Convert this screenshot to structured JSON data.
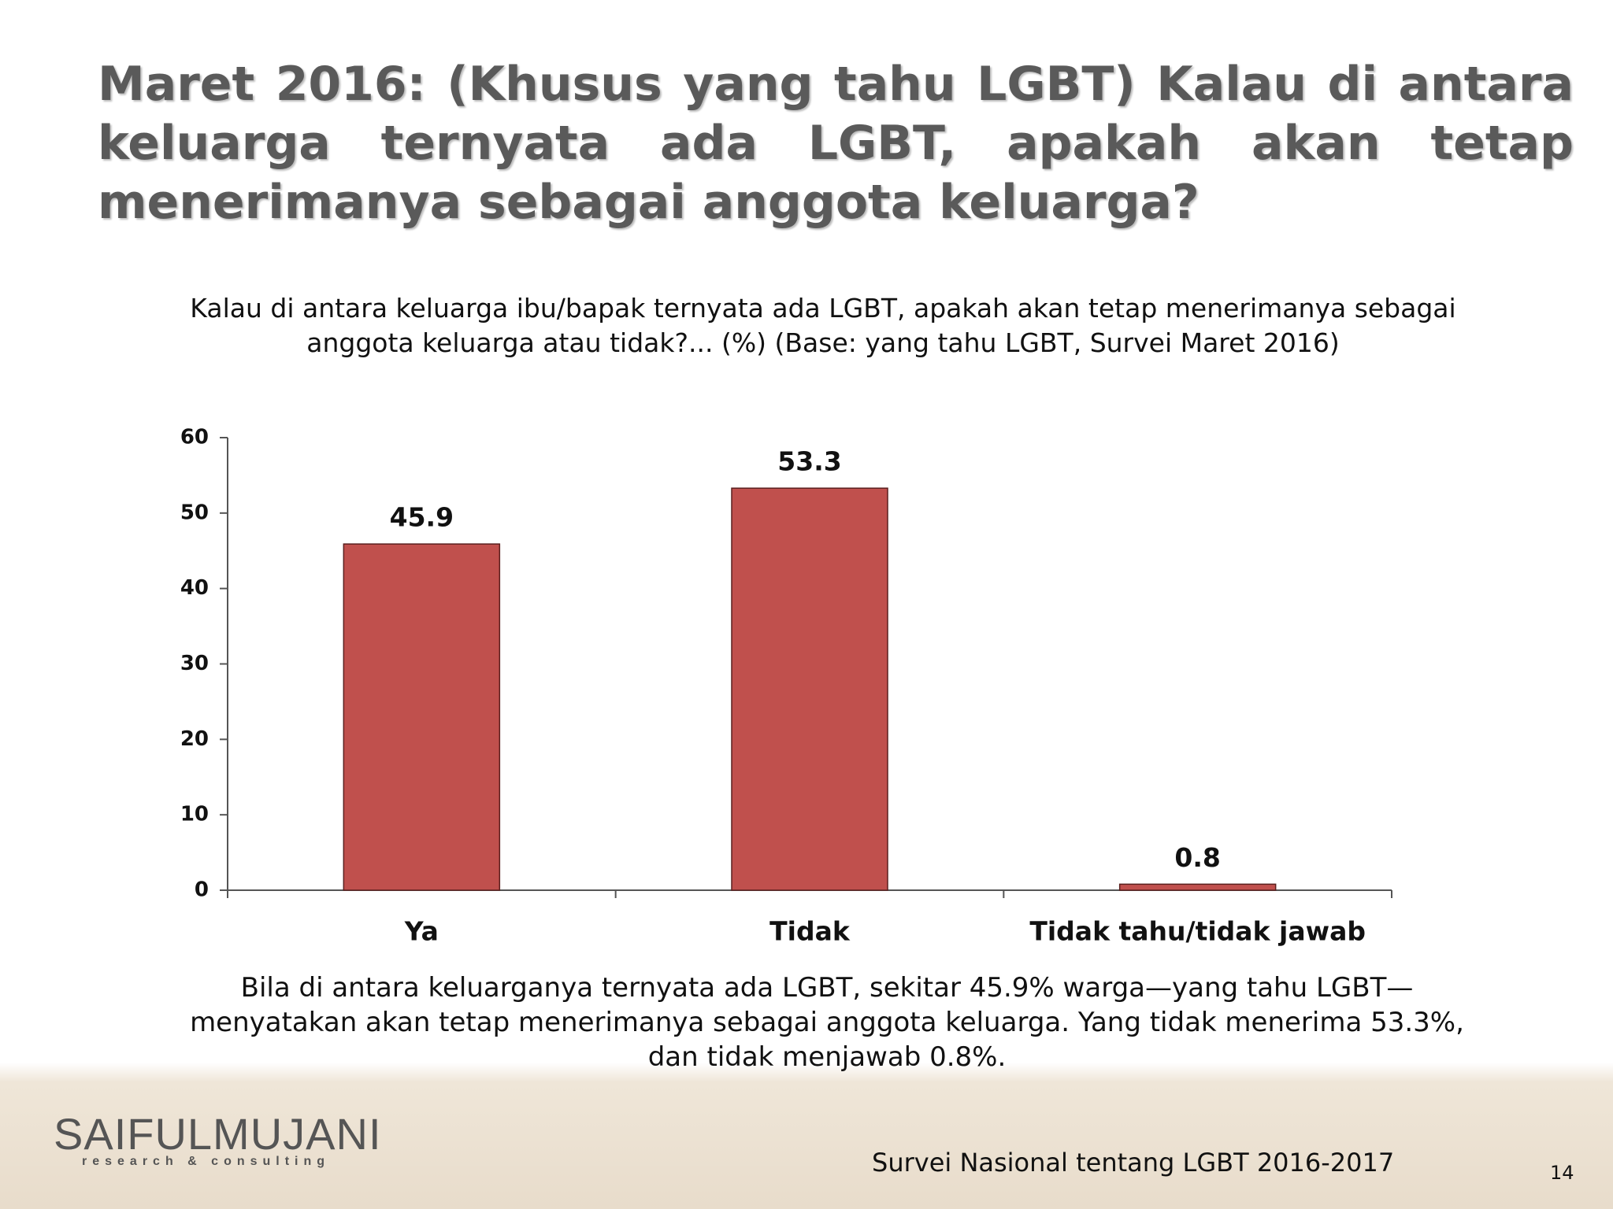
{
  "title": "Maret 2016: (Khusus yang tahu LGBT) Kalau di antara keluarga ternyata ada LGBT, apakah akan tetap menerimanya sebagai anggota keluarga?",
  "chart_data": {
    "type": "bar",
    "title": "Kalau di antara keluarga ibu/bapak ternyata ada LGBT, apakah akan tetap menerimanya sebagai anggota keluarga atau tidak?... (%) (Base: yang tahu LGBT, Survei Maret 2016)",
    "categories": [
      "Ya",
      "Tidak",
      "Tidak tahu/tidak jawab"
    ],
    "values": [
      45.9,
      53.3,
      0.8
    ],
    "color": "#c0504d",
    "ylim": [
      0,
      60
    ],
    "yticks": [
      0,
      10,
      20,
      30,
      40,
      50,
      60
    ],
    "grid": false
  },
  "caption": "Bila di antara keluarganya ternyata ada LGBT, sekitar 45.9% warga—yang tahu LGBT—menyatakan akan tetap menerimanya sebagai anggota keluarga. Yang tidak menerima 53.3%, dan tidak menjawab 0.8%.",
  "logo": {
    "name": "SAIFULMUJANI",
    "tagline": "research & consulting"
  },
  "footer": "Survei Nasional tentang LGBT 2016-2017",
  "page_number": "14"
}
